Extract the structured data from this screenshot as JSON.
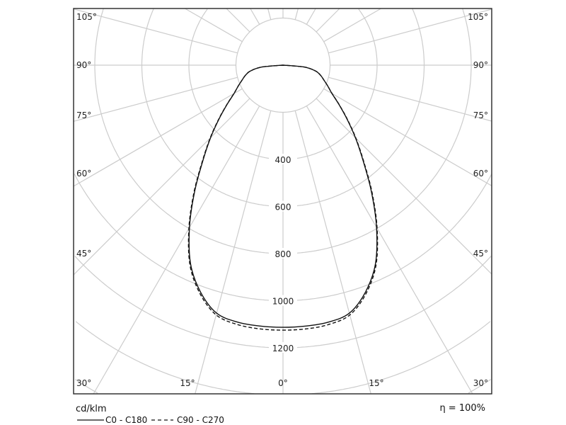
{
  "chart_data": {
    "type": "polar",
    "unit_label": "cd/klm",
    "efficiency_label": "η = 100%",
    "radial_ticks": [
      400,
      600,
      800,
      1000,
      1200
    ],
    "radial_grid_step": 200,
    "angle_ticks_left": [
      "105°",
      "90°",
      "75°",
      "60°",
      "45°",
      "30°"
    ],
    "angle_ticks_bottom": [
      "15°",
      "0°",
      "15°"
    ],
    "angle_ticks_right": [
      "105°",
      "90°",
      "75°",
      "60°",
      "45°",
      "30°"
    ],
    "angle_grid_step": 15,
    "grid": true,
    "legend_position": "bottom-left",
    "colors": {
      "grid": "#cccccc",
      "series": "#111111",
      "frame": "#333333"
    },
    "angles": [
      0,
      5,
      10,
      15,
      20,
      25,
      30,
      35,
      40,
      45,
      50,
      55,
      60,
      65,
      70,
      75,
      80,
      85,
      90
    ],
    "series": [
      {
        "name": "C0 - C180",
        "style": "solid",
        "values": [
          1113,
          1112,
          1108,
          1090,
          1025,
          930,
          795,
          655,
          530,
          435,
          355,
          290,
          240,
          210,
          185,
          165,
          140,
          90,
          0
        ]
      },
      {
        "name": "C90 - C270",
        "style": "dashed",
        "values": [
          1125,
          1124,
          1118,
          1098,
          1032,
          936,
          800,
          660,
          534,
          438,
          357,
          291,
          241,
          210,
          185,
          165,
          140,
          90,
          0
        ]
      }
    ]
  }
}
